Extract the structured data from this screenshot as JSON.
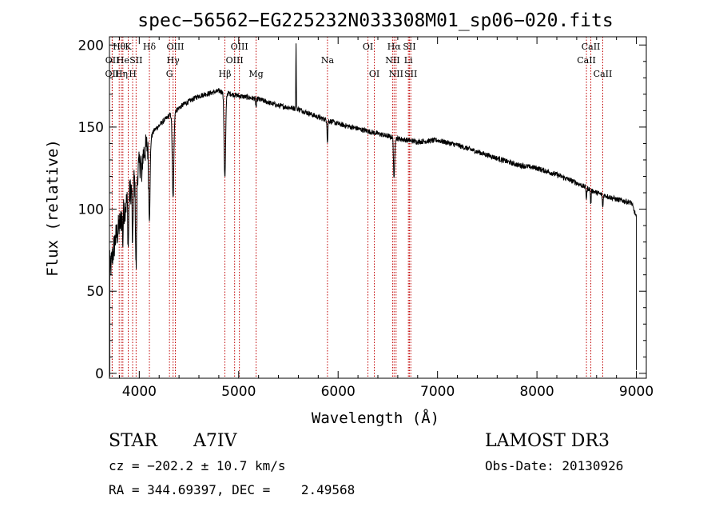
{
  "info": {
    "object_class": "STAR",
    "subclass": "A7IV",
    "survey": "LAMOST DR3",
    "obs_date": "Obs-Date: 20130926",
    "cz": "cz = −202.2 ± 10.7 km/s",
    "radec": "RA = 344.69397, DEC =    2.49568"
  },
  "colors": {
    "line_marker": "#c00000",
    "spectrum": "#000000"
  },
  "chart_data": {
    "type": "line",
    "title": "spec−56562−EG225232N033308M01_sp06−020.fits",
    "xlabel": "Wavelength (Å)",
    "ylabel": "Flux (relative)",
    "xlim": [
      3700,
      9100
    ],
    "ylim": [
      -3,
      205
    ],
    "xticks": [
      4000,
      5000,
      6000,
      7000,
      8000,
      9000
    ],
    "yticks": [
      0,
      50,
      100,
      150,
      200
    ],
    "continuum": [
      [
        3700,
        60
      ],
      [
        3760,
        82
      ],
      [
        3850,
        100
      ],
      [
        3950,
        118
      ],
      [
        4050,
        135
      ],
      [
        4150,
        148
      ],
      [
        4300,
        157
      ],
      [
        4450,
        164
      ],
      [
        4600,
        169
      ],
      [
        4800,
        172
      ],
      [
        5000,
        169
      ],
      [
        5200,
        167
      ],
      [
        5400,
        163
      ],
      [
        5600,
        161
      ],
      [
        5800,
        156
      ],
      [
        6000,
        152
      ],
      [
        6200,
        149
      ],
      [
        6400,
        146
      ],
      [
        6600,
        143
      ],
      [
        6800,
        141
      ],
      [
        7000,
        142
      ],
      [
        7200,
        139
      ],
      [
        7400,
        135
      ],
      [
        7600,
        131
      ],
      [
        7800,
        127
      ],
      [
        8000,
        125
      ],
      [
        8200,
        121
      ],
      [
        8400,
        116
      ],
      [
        8600,
        110
      ],
      [
        8800,
        106
      ],
      [
        8950,
        104
      ],
      [
        9000,
        95
      ]
    ],
    "absorption": [
      {
        "center": 3835,
        "depth": 18,
        "width": 4
      },
      {
        "center": 3889,
        "depth": 30,
        "width": 6
      },
      {
        "center": 3933,
        "depth": 40,
        "width": 6
      },
      {
        "center": 3968,
        "depth": 58,
        "width": 8
      },
      {
        "center": 4026,
        "depth": 18,
        "width": 4
      },
      {
        "center": 4102,
        "depth": 48,
        "width": 10
      },
      {
        "center": 4340,
        "depth": 52,
        "width": 11
      },
      {
        "center": 4861,
        "depth": 52,
        "width": 11
      },
      {
        "center": 5175,
        "depth": 5,
        "width": 6
      },
      {
        "center": 5893,
        "depth": 14,
        "width": 5
      },
      {
        "center": 6563,
        "depth": 26,
        "width": 8
      },
      {
        "center": 8498,
        "depth": 7,
        "width": 5
      },
      {
        "center": 8542,
        "depth": 9,
        "width": 5
      },
      {
        "center": 8662,
        "depth": 8,
        "width": 5
      }
    ],
    "emission": [
      {
        "center": 5577,
        "height": 40,
        "width": 3
      }
    ],
    "end_drop": {
      "from": 9000,
      "to": 2
    },
    "lines": [
      {
        "wave": 3727,
        "label": "OII",
        "row": 2
      },
      {
        "wave": 3729,
        "label": "OII",
        "row": 1
      },
      {
        "wave": 3798,
        "label": "Hθ",
        "row": 0
      },
      {
        "wave": 3820,
        "label": "Hη",
        "row": 2
      },
      {
        "wave": 3835,
        "label": "He",
        "row": 1
      },
      {
        "wave": 3889,
        "label": "K",
        "row": 0
      },
      {
        "wave": 3933,
        "label": "H",
        "row": 2
      },
      {
        "wave": 3968,
        "label": "SII",
        "row": 1
      },
      {
        "wave": 4102,
        "label": "Hδ",
        "row": 0
      },
      {
        "wave": 4304,
        "label": "G",
        "row": 2
      },
      {
        "wave": 4340,
        "label": "Hγ",
        "row": 1
      },
      {
        "wave": 4363,
        "label": "OIII",
        "row": 0
      },
      {
        "wave": 4861,
        "label": "Hβ",
        "row": 2
      },
      {
        "wave": 4959,
        "label": "OIII",
        "row": 1
      },
      {
        "wave": 5007,
        "label": "OIII",
        "row": 0
      },
      {
        "wave": 5175,
        "label": "Mg",
        "row": 2
      },
      {
        "wave": 5893,
        "label": "Na",
        "row": 1
      },
      {
        "wave": 6300,
        "label": "OI",
        "row": 0
      },
      {
        "wave": 6364,
        "label": "OI",
        "row": 2
      },
      {
        "wave": 6548,
        "label": "NII",
        "row": 1
      },
      {
        "wave": 6563,
        "label": "Hα",
        "row": 0
      },
      {
        "wave": 6583,
        "label": "NII",
        "row": 2
      },
      {
        "wave": 6707,
        "label": "Li",
        "row": 1
      },
      {
        "wave": 6717,
        "label": "SII",
        "row": 0
      },
      {
        "wave": 6731,
        "label": "SII",
        "row": 2
      },
      {
        "wave": 8498,
        "label": "CaII",
        "row": 1
      },
      {
        "wave": 8542,
        "label": "CaII",
        "row": 0
      },
      {
        "wave": 8662,
        "label": "CaII",
        "row": 2
      }
    ]
  }
}
